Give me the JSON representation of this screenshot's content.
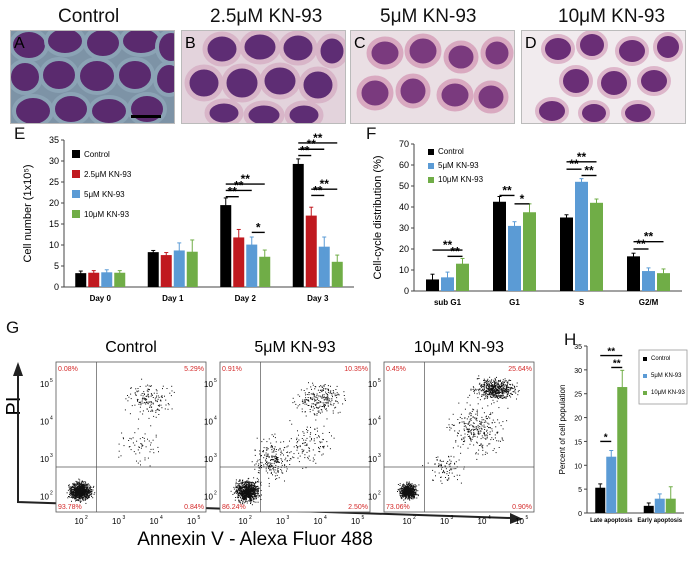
{
  "micrographs": {
    "titles": [
      "Control",
      "2.5μM KN-93",
      "5μM KN-93",
      "10μM KN-93"
    ],
    "labels": [
      "A",
      "B",
      "C",
      "D"
    ]
  },
  "panel_labels": {
    "E": "E",
    "F": "F",
    "G": "G",
    "H": "H"
  },
  "flow": {
    "titles": [
      "Control",
      "5μM KN-93",
      "10μM KN-93"
    ],
    "quadrants": [
      {
        "ul": "0.08%",
        "ur": "5.29%",
        "ll": "93.78%",
        "lr": "0.84%"
      },
      {
        "ul": "0.91%",
        "ur": "10.35%",
        "ll": "86.24%",
        "lr": "2.50%"
      },
      {
        "ul": "0.45%",
        "ur": "25.64%",
        "ll": "73.06%",
        "lr": "0.90%"
      }
    ],
    "y_axis_label": "PI",
    "x_axis_label": "Annexin V - Alexa Fluor 488",
    "tick_labels": [
      "10",
      "10",
      "10",
      "10",
      "10"
    ],
    "tick_exponents": [
      "1",
      "2",
      "3",
      "4",
      "5"
    ],
    "colors": {
      "quadrant_text": "#d42a2a",
      "dots": "#111111"
    }
  },
  "chart_data": [
    {
      "id": "E",
      "type": "bar",
      "ylabel": "Cell number (1x10⁵)",
      "xlabel": "",
      "ylim": [
        0,
        35
      ],
      "yticks": [
        "0",
        "5",
        "10",
        "15",
        "20",
        "25",
        "30",
        "35"
      ],
      "categories": [
        "Day 0",
        "Day 1",
        "Day 2",
        "Day 3"
      ],
      "series": [
        {
          "name": "Control",
          "color": "#000000",
          "values": [
            3.3,
            8.3,
            19.5,
            29.3
          ],
          "errors": [
            0.5,
            0.4,
            1.7,
            1.2
          ]
        },
        {
          "name": "2.5μM KN-93",
          "color": "#c0191f",
          "values": [
            3.4,
            7.6,
            11.8,
            17.0
          ],
          "errors": [
            0.5,
            0.6,
            1.9,
            2.0
          ]
        },
        {
          "name": "5μM KN-93",
          "color": "#5b9bd5",
          "values": [
            3.5,
            8.7,
            10.1,
            9.6
          ],
          "errors": [
            0.6,
            1.8,
            1.8,
            2.3
          ]
        },
        {
          "name": "10μM KN-93",
          "color": "#70ad47",
          "values": [
            3.4,
            8.4,
            7.2,
            6.0
          ],
          "errors": [
            0.5,
            2.8,
            1.6,
            1.6
          ]
        }
      ],
      "significance": [
        {
          "label": "**",
          "group": 2,
          "from": 0,
          "to": 3,
          "y": 24.5
        },
        {
          "label": "**",
          "group": 2,
          "from": 0,
          "to": 2,
          "y": 23.0
        },
        {
          "label": "**",
          "group": 2,
          "from": 0,
          "to": 1,
          "y": 21.5
        },
        {
          "label": "*",
          "group": 2,
          "from": 2,
          "to": 3,
          "y": 13.0
        },
        {
          "label": "**",
          "group": 3,
          "from": 0,
          "to": 3,
          "y": 34.3
        },
        {
          "label": "**",
          "group": 3,
          "from": 0,
          "to": 2,
          "y": 32.8
        },
        {
          "label": "**",
          "group": 3,
          "from": 0,
          "to": 1,
          "y": 31.3
        },
        {
          "label": "**",
          "group": 3,
          "from": 1,
          "to": 3,
          "y": 23.3
        },
        {
          "label": "**",
          "group": 3,
          "from": 1,
          "to": 2,
          "y": 21.8
        }
      ],
      "legend": "top-left"
    },
    {
      "id": "F",
      "type": "bar",
      "ylabel": "Cell-cycle distribution (%)",
      "xlabel": "",
      "ylim": [
        0,
        70
      ],
      "yticks": [
        "0",
        "10",
        "20",
        "30",
        "40",
        "50",
        "60",
        "70"
      ],
      "categories": [
        "sub G1",
        "G1",
        "S",
        "G2/M"
      ],
      "series": [
        {
          "name": "Control",
          "color": "#000000",
          "values": [
            5.5,
            42.5,
            35.0,
            16.5
          ],
          "errors": [
            2.5,
            2.5,
            1.3,
            1.5
          ]
        },
        {
          "name": "5μM KN-93",
          "color": "#5b9bd5",
          "values": [
            6.5,
            31.0,
            52.0,
            9.5
          ],
          "errors": [
            2.5,
            2.0,
            1.5,
            1.5
          ]
        },
        {
          "name": "10μM KN-93",
          "color": "#70ad47",
          "values": [
            13.0,
            37.5,
            42.0,
            8.5
          ],
          "errors": [
            2.5,
            4.0,
            1.8,
            2.0
          ]
        }
      ],
      "significance": [
        {
          "label": "**",
          "group": 0,
          "from": 0,
          "to": 2,
          "y": 19.5
        },
        {
          "label": "**",
          "group": 0,
          "from": 1,
          "to": 2,
          "y": 16.5
        },
        {
          "label": "**",
          "group": 1,
          "from": 0,
          "to": 1,
          "y": 45.5
        },
        {
          "label": "*",
          "group": 1,
          "from": 1,
          "to": 2,
          "y": 41.5
        },
        {
          "label": "**",
          "group": 2,
          "from": 0,
          "to": 2,
          "y": 61.5
        },
        {
          "label": "**",
          "group": 2,
          "from": 0,
          "to": 1,
          "y": 58.0
        },
        {
          "label": "**",
          "group": 2,
          "from": 1,
          "to": 2,
          "y": 55.0
        },
        {
          "label": "**",
          "group": 3,
          "from": 0,
          "to": 2,
          "y": 23.5
        },
        {
          "label": "**",
          "group": 3,
          "from": 0,
          "to": 1,
          "y": 20.0
        }
      ],
      "legend": "top-left"
    },
    {
      "id": "H",
      "type": "bar",
      "ylabel": "Percent of cell population",
      "xlabel": "",
      "ylim": [
        0,
        35
      ],
      "yticks": [
        "0",
        "5",
        "10",
        "15",
        "20",
        "25",
        "30",
        "35"
      ],
      "categories": [
        "Late apoptosis",
        "Early apoptosis"
      ],
      "series": [
        {
          "name": "Control",
          "color": "#000000",
          "values": [
            5.3,
            1.5
          ],
          "errors": [
            0.8,
            0.6
          ]
        },
        {
          "name": "5μM KN-93",
          "color": "#5b9bd5",
          "values": [
            11.8,
            3.0
          ],
          "errors": [
            1.3,
            1.0
          ]
        },
        {
          "name": "10μM KN-93",
          "color": "#70ad47",
          "values": [
            26.4,
            3.0
          ],
          "errors": [
            3.5,
            2.5
          ]
        }
      ],
      "significance": [
        {
          "label": "**",
          "group": 0,
          "from": 0,
          "to": 2,
          "y": 33.0
        },
        {
          "label": "**",
          "group": 0,
          "from": 1,
          "to": 2,
          "y": 30.5
        },
        {
          "label": "*",
          "group": 0,
          "from": 0,
          "to": 1,
          "y": 15.0
        }
      ],
      "legend": "top-right"
    }
  ]
}
